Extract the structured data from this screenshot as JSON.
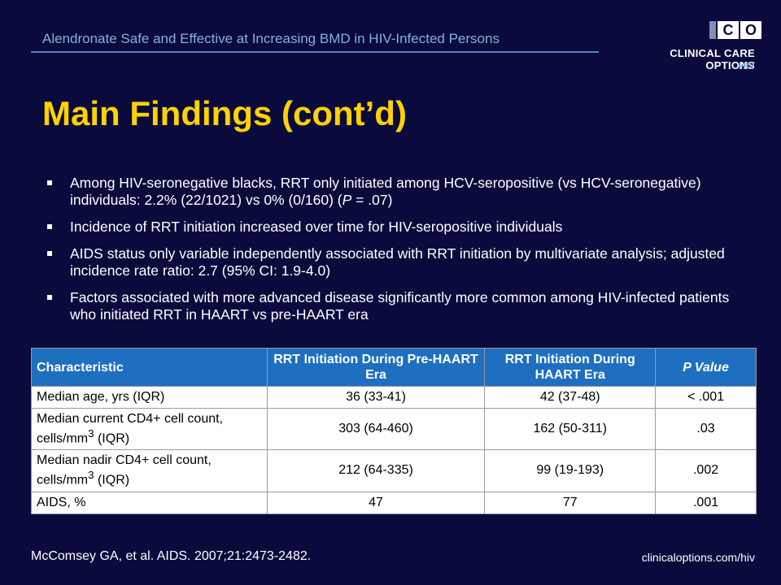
{
  "header": {
    "title": "Alendronate Safe and Effective at Increasing BMD in HIV-Infected Persons",
    "logo": {
      "box_letters": [
        "C",
        "O"
      ],
      "name": "CLINICAL CARE OPTIONS",
      "sub": "HIV"
    }
  },
  "title": "Main Findings (cont’d)",
  "bullets": [
    {
      "text": "Among HIV-seronegative blacks, RRT only initiated among HCV-seropositive (vs HCV-seronegative) individuals: 2.2% (22/1021) vs 0% (0/160) (",
      "italic": "P",
      "tail": " = .07)"
    },
    {
      "text": "Incidence of RRT initiation increased over time for HIV-seropositive individuals"
    },
    {
      "text": "AIDS status only variable independently associated with RRT initiation by multivariate analysis; adjusted incidence rate ratio: 2.7 (95% CI: 1.9-4.0)"
    },
    {
      "text": "Factors associated with more advanced disease significantly more common among HIV-infected patients who initiated RRT in HAART vs pre-HAART era"
    }
  ],
  "table": {
    "headers": [
      "Characteristic",
      "RRT Initiation During Pre-HAART Era",
      "RRT Initiation During HAART Era",
      "P Value"
    ],
    "rows": [
      {
        "label": "Median age, yrs (IQR)",
        "pre": "36 (33-41)",
        "haart": "42 (37-48)",
        "p": "< .001"
      },
      {
        "label_pre": "Median current CD4+ cell count, cells/mm",
        "label_sup": "3",
        "label_post": " (IQR)",
        "pre": "303 (64-460)",
        "haart": "162 (50-311)",
        "p": ".03"
      },
      {
        "label_pre": "Median nadir CD4+ cell count, cells/mm",
        "label_sup": "3",
        "label_post": " (IQR)",
        "pre": "212 (64-335)",
        "haart": "99 (19-193)",
        "p": ".002"
      },
      {
        "label": "AIDS, %",
        "pre": "47",
        "haart": "77",
        "p": ".001"
      }
    ]
  },
  "footer": {
    "citation": "McComsey GA, et al. AIDS. 2007;21:2473-2482.",
    "url": "clinicaloptions.com/hiv"
  }
}
